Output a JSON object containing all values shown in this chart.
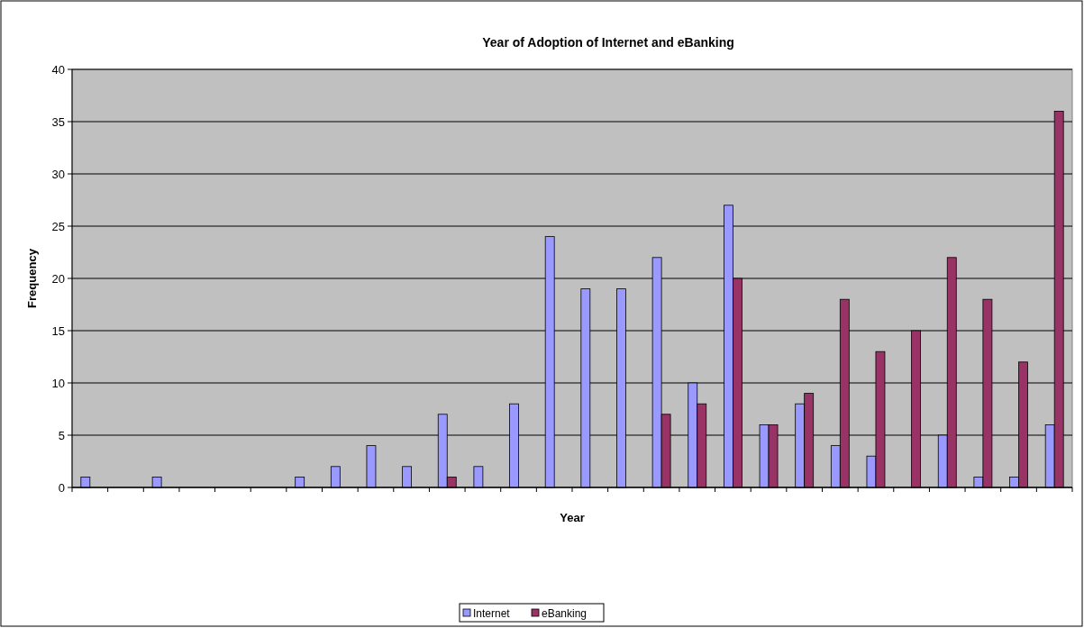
{
  "chart_data": {
    "type": "bar",
    "title": "Year of Adoption of Internet and eBanking",
    "xlabel": "Year",
    "ylabel": "Frequency",
    "categories": [
      null,
      null,
      null,
      null,
      null,
      null,
      null,
      null,
      null,
      null,
      null,
      null,
      null,
      null,
      null,
      null,
      null,
      null,
      null,
      null,
      null,
      null,
      null,
      null,
      null,
      null,
      null,
      null
    ],
    "series": [
      {
        "name": "Internet",
        "color": "#9999ff",
        "values": [
          1,
          0,
          1,
          0,
          0,
          0,
          1,
          2,
          4,
          2,
          7,
          2,
          8,
          24,
          19,
          19,
          22,
          10,
          27,
          6,
          8,
          4,
          3,
          0,
          5,
          1,
          1,
          6
        ]
      },
      {
        "name": "eBanking",
        "color": "#993366",
        "values": [
          0,
          0,
          0,
          0,
          0,
          0,
          0,
          0,
          0,
          0,
          1,
          0,
          0,
          0,
          0,
          0,
          7,
          8,
          20,
          6,
          9,
          18,
          13,
          15,
          22,
          18,
          12,
          36
        ]
      }
    ],
    "ylim": [
      0,
      40
    ],
    "yticks": [
      0,
      5,
      10,
      15,
      20,
      25,
      30,
      35,
      40
    ],
    "grid": "y",
    "legend": "bottom"
  }
}
